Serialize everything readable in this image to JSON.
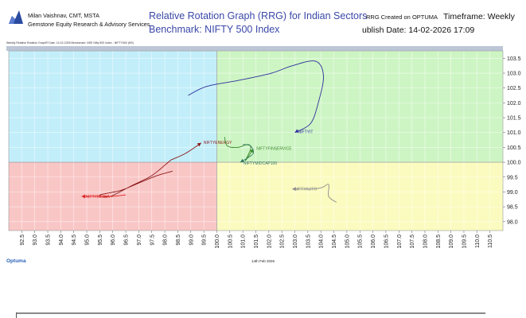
{
  "header": {
    "author": "Milan Vaishnav, CMT, MSTA",
    "org": "Gemstone Equity Research & Advisory Services",
    "title_line1": "Relative Rotation Graph (RRG) for Indian Sectors",
    "title_line2": "Benchmark: NIFTY 500 Index",
    "created_on": "RRG Created on OPTUMA",
    "timeframe": "Timeframe: Weekly",
    "publish_date": "ublish Date: 14-02-2026 17:09",
    "subheader": "Weekly Relative Rotation Graph®    Date: 14-02-2026  Benchmark: NSE Nifty 500 Index - NIFTY500 (NS)"
  },
  "footer": {
    "logo_text": "Optuma",
    "date": "14th Feb 2026"
  },
  "colors": {
    "leading": "#cdf5c4",
    "weakening": "#fbfbc0",
    "lagging": "#f9c6c6",
    "improving": "#c2eefa",
    "title": "#3a47a8",
    "nifty_it": "#2e2e9c",
    "energy": "#8b1a1a",
    "finservice": "#3c8a2a",
    "midcap": "#2f7a65",
    "auto": "#8a8a8a",
    "media": "#dd2222"
  },
  "chart_data": {
    "type": "scatter",
    "title": "Relative Rotation Graph (RRG) for Indian Sectors",
    "subtitle": "Benchmark: NIFTY 500 Index",
    "xlabel": "",
    "ylabel": "",
    "xlim": [
      92.0,
      111.0
    ],
    "ylim": [
      97.7,
      103.75
    ],
    "x_ticks": [
      "92.5",
      "93.0",
      "93.5",
      "94.0",
      "94.5",
      "95.0",
      "95.5",
      "96.0",
      "96.5",
      "97.0",
      "97.5",
      "98.0",
      "98.5",
      "99.0",
      "99.5",
      "100.0",
      "100.5",
      "101.0",
      "101.5",
      "102.0",
      "102.5",
      "103.0",
      "103.5",
      "104.0",
      "104.5",
      "105.0",
      "105.5",
      "106.0",
      "106.5",
      "107.0",
      "107.5",
      "108.0",
      "108.5",
      "109.0",
      "109.5",
      "110.0",
      "110.5"
    ],
    "y_ticks": [
      "98.0",
      "98.5",
      "99.0",
      "99.5",
      "100.0",
      "100.5",
      "101.0",
      "101.5",
      "102.0",
      "102.5",
      "103.0",
      "103.5"
    ],
    "grid": true,
    "quadrants": [
      {
        "name": "Leading",
        "color": "#cdf5c4"
      },
      {
        "name": "Weakening",
        "color": "#fbfbc0"
      },
      {
        "name": "Lagging",
        "color": "#f9c6c6"
      },
      {
        "name": "Improving",
        "color": "#c2eefa"
      }
    ],
    "series": [
      {
        "name": "NIFTYIT",
        "color": "#2e2e9c",
        "points": [
          [
            98.9,
            102.25
          ],
          [
            99.6,
            102.55
          ],
          [
            100.8,
            102.75
          ],
          [
            102.1,
            103.0
          ],
          [
            102.9,
            103.25
          ],
          [
            103.8,
            103.4
          ],
          [
            104.1,
            102.9
          ],
          [
            103.9,
            102.0
          ],
          [
            103.6,
            101.3
          ],
          [
            103.0,
            101.0
          ]
        ]
      },
      {
        "name": "NIFTYENERGY",
        "color": "#8b1a1a",
        "points": [
          [
            98.3,
            99.7
          ],
          [
            97.7,
            99.55
          ],
          [
            97.0,
            99.3
          ],
          [
            96.3,
            99.05
          ],
          [
            95.5,
            98.9
          ],
          [
            95.9,
            98.85
          ],
          [
            96.7,
            99.2
          ],
          [
            97.5,
            99.55
          ],
          [
            98.2,
            100.05
          ],
          [
            98.3,
            100.1
          ],
          [
            98.8,
            100.3
          ],
          [
            99.4,
            100.65
          ]
        ]
      },
      {
        "name": "NIFTYFINSERVICE",
        "color": "#3c8a2a",
        "points": [
          [
            100.3,
            100.85
          ],
          [
            100.4,
            100.55
          ],
          [
            100.8,
            100.5
          ],
          [
            101.2,
            100.6
          ],
          [
            101.3,
            100.45
          ],
          [
            101.1,
            100.05
          ],
          [
            101.4,
            100.45
          ]
        ]
      },
      {
        "name": "NIFTYMIDCAP100",
        "color": "#2f7a65",
        "points": [
          [
            101.0,
            100.6
          ],
          [
            101.3,
            100.55
          ],
          [
            101.4,
            100.3
          ],
          [
            101.1,
            100.1
          ],
          [
            100.9,
            100.0
          ]
        ]
      },
      {
        "name": "NIFTYAUTO",
        "color": "#8a8a8a",
        "points": [
          [
            104.6,
            98.65
          ],
          [
            104.3,
            98.85
          ],
          [
            104.3,
            99.25
          ],
          [
            104.05,
            99.15
          ],
          [
            103.7,
            99.1
          ],
          [
            102.9,
            99.1
          ]
        ]
      },
      {
        "name": "NIFTYMEDIA",
        "color": "#dd2222",
        "points": [
          [
            96.5,
            98.9
          ],
          [
            96.0,
            98.85
          ],
          [
            95.7,
            98.85
          ],
          [
            95.3,
            98.85
          ],
          [
            94.8,
            98.85
          ]
        ]
      }
    ]
  }
}
